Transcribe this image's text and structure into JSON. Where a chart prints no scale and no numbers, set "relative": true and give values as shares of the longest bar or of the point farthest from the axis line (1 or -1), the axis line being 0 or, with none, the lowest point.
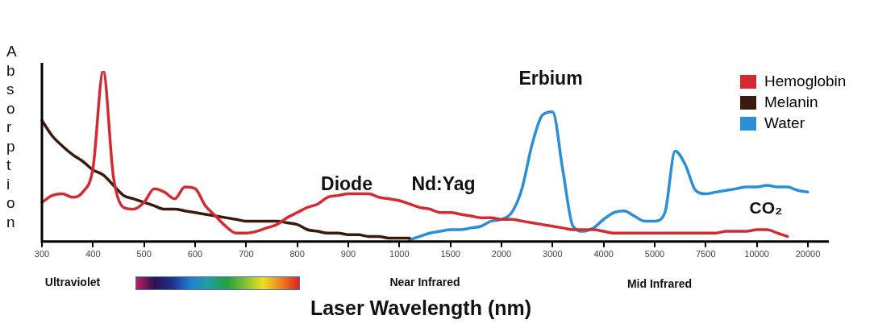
{
  "chart_data": {
    "type": "line",
    "xlabel": "Laser Wavelength (nm)",
    "ylabel": "Absorption",
    "relative": true,
    "legend": "top right",
    "marker": "none",
    "line_style": "solid",
    "grid": false,
    "categories": [
      "300",
      null,
      null,
      null,
      null,
      "400",
      null,
      null,
      null,
      null,
      "500",
      null,
      null,
      null,
      null,
      "600",
      null,
      null,
      null,
      null,
      "700",
      null,
      null,
      null,
      null,
      "800",
      null,
      null,
      null,
      null,
      "900",
      null,
      null,
      null,
      null,
      "1000",
      null,
      null,
      null,
      null,
      "1500",
      null,
      null,
      null,
      null,
      "2000",
      null,
      null,
      null,
      null,
      "3000",
      null,
      null,
      null,
      null,
      "4000",
      null,
      null,
      null,
      null,
      "5000",
      null,
      null,
      null,
      null,
      "7500",
      null,
      null,
      null,
      null,
      "10000",
      null,
      null,
      null,
      null,
      "20000"
    ],
    "series": [
      {
        "name": "Hemoglobin",
        "color": "#d42a32",
        "values": [
          0.23,
          0.27,
          0.28,
          0.26,
          0.29,
          0.43,
          1,
          0.38,
          0.2,
          0.19,
          0.23,
          0.31,
          0.29,
          0.25,
          0.32,
          0.31,
          0.21,
          0.15,
          0.09,
          0.05,
          0.05,
          0.06,
          0.08,
          0.1,
          0.14,
          0.17,
          0.2,
          0.22,
          0.26,
          0.27,
          0.28,
          0.28,
          0.28,
          0.26,
          0.25,
          0.24,
          0.22,
          0.2,
          0.19,
          0.17,
          0.17,
          0.16,
          0.15,
          0.14,
          0.14,
          0.13,
          0.13,
          0.12,
          0.11,
          0.1,
          0.09,
          0.08,
          0.07,
          0.07,
          0.07,
          0.06,
          0.05,
          0.05,
          0.05,
          0.05,
          0.05,
          0.05,
          0.05,
          0.05,
          0.05,
          0.05,
          0.05,
          0.06,
          0.06,
          0.06,
          0.07,
          0.07,
          0.05,
          0.03,
          null,
          null
        ]
      },
      {
        "name": "Melanin",
        "color": "#3b1a0e",
        "values": [
          0.71,
          0.62,
          0.56,
          0.51,
          0.47,
          0.42,
          0.39,
          0.33,
          0.27,
          0.25,
          0.23,
          0.21,
          0.19,
          0.19,
          0.18,
          0.17,
          0.16,
          0.15,
          0.14,
          0.13,
          0.12,
          0.12,
          0.12,
          0.12,
          0.11,
          0.1,
          0.07,
          0.06,
          0.05,
          0.05,
          0.04,
          0.04,
          0.03,
          0.03,
          0.02,
          0.02,
          0.02,
          null,
          null,
          null,
          null,
          null,
          null,
          null,
          null,
          null,
          null,
          null,
          null,
          null,
          null,
          null,
          null,
          null,
          null,
          null,
          null,
          null,
          null,
          null,
          null,
          null,
          null,
          null,
          null,
          null,
          null,
          null,
          null,
          null,
          null,
          null,
          null,
          null,
          null,
          null
        ]
      },
      {
        "name": "Water",
        "color": "#2a8fd6",
        "values": [
          null,
          null,
          null,
          null,
          null,
          null,
          null,
          null,
          null,
          null,
          null,
          null,
          null,
          null,
          null,
          null,
          null,
          null,
          null,
          null,
          null,
          null,
          null,
          null,
          null,
          null,
          null,
          null,
          null,
          null,
          null,
          null,
          null,
          null,
          null,
          null,
          0.01,
          0.03,
          0.05,
          0.06,
          0.07,
          0.07,
          0.08,
          0.09,
          0.12,
          0.13,
          0.17,
          0.31,
          0.57,
          0.74,
          0.76,
          0.42,
          0.09,
          0.06,
          0.08,
          0.13,
          0.17,
          0.18,
          0.15,
          0.12,
          0.12,
          0.17,
          0.53,
          0.45,
          0.3,
          0.28,
          0.29,
          0.3,
          0.31,
          0.32,
          0.32,
          0.33,
          0.32,
          0.32,
          0.3,
          0.29
        ]
      }
    ],
    "annotations": [
      "Diode",
      "Nd:Yag",
      "Erbium",
      "CO₂",
      "Ultraviolet",
      "Near Infrared",
      "Mid Infrared"
    ]
  }
}
